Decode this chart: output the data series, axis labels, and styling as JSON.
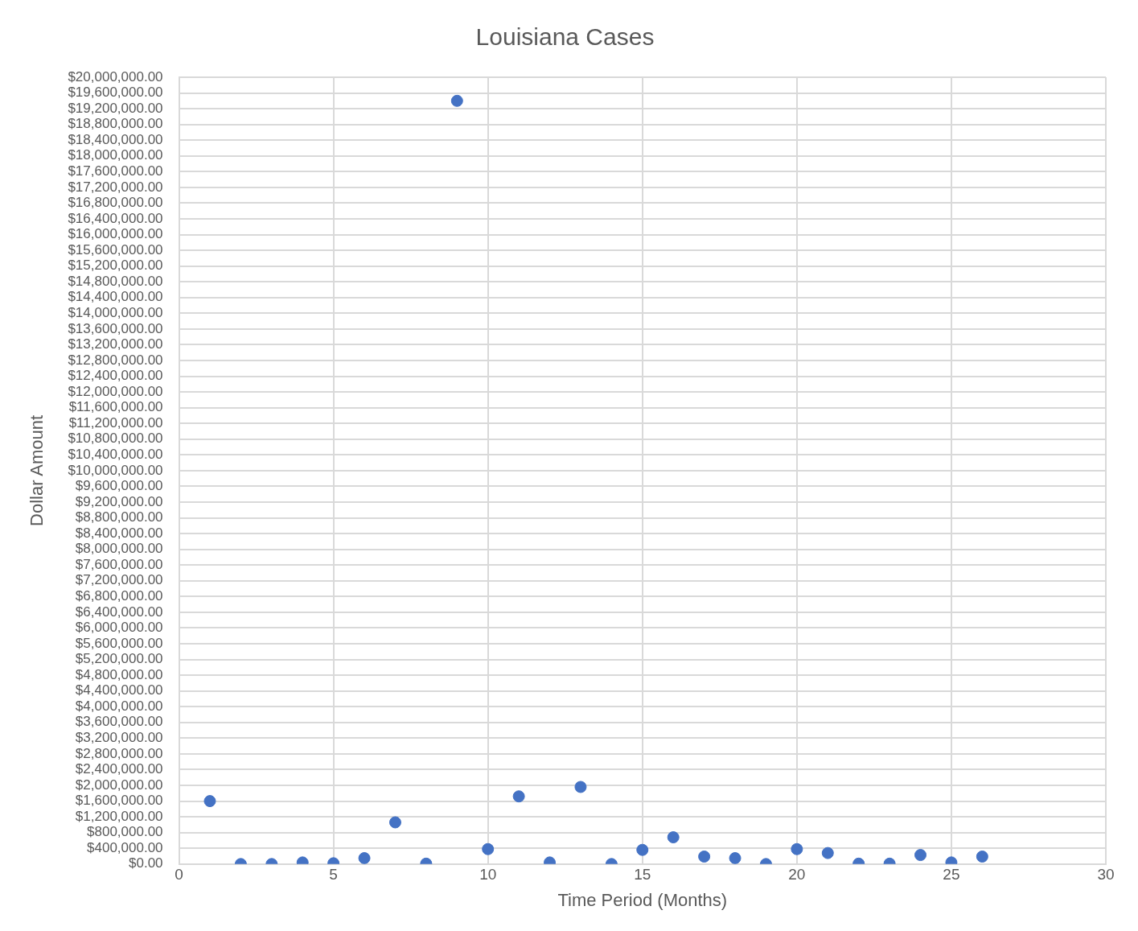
{
  "chart_data": {
    "type": "scatter",
    "title": "Louisiana Cases",
    "xlabel": "Time Period (Months)",
    "ylabel": "Dollar Amount",
    "x": [
      1,
      2,
      3,
      4,
      5,
      6,
      7,
      8,
      9,
      10,
      11,
      12,
      13,
      14,
      15,
      16,
      17,
      18,
      19,
      20,
      21,
      22,
      23,
      24,
      25,
      26
    ],
    "values": [
      1600000,
      0,
      0,
      40000,
      20000,
      150000,
      1060000,
      10000,
      19400000,
      380000,
      1720000,
      40000,
      1960000,
      0,
      360000,
      680000,
      190000,
      150000,
      0,
      380000,
      280000,
      10000,
      10000,
      230000,
      40000,
      190000
    ],
    "color": "#4472c4",
    "marker": "circle",
    "grid": true,
    "legend": false,
    "xlim": [
      0,
      30
    ],
    "xticks": [
      0,
      5,
      10,
      15,
      20,
      25,
      30
    ],
    "ylim": [
      0,
      20000000
    ],
    "yticks": [
      {
        "value": 0,
        "label": "$0.00"
      },
      {
        "value": 400000,
        "label": "$400,000.00"
      },
      {
        "value": 800000,
        "label": "$800,000.00"
      },
      {
        "value": 1200000,
        "label": "$1,200,000.00"
      },
      {
        "value": 1600000,
        "label": "$1,600,000.00"
      },
      {
        "value": 2000000,
        "label": "$2,000,000.00"
      },
      {
        "value": 2400000,
        "label": "$2,400,000.00"
      },
      {
        "value": 2800000,
        "label": "$2,800,000.00"
      },
      {
        "value": 3200000,
        "label": "$3,200,000.00"
      },
      {
        "value": 3600000,
        "label": "$3,600,000.00"
      },
      {
        "value": 4000000,
        "label": "$4,000,000.00"
      },
      {
        "value": 4400000,
        "label": "$4,400,000.00"
      },
      {
        "value": 4800000,
        "label": "$4,800,000.00"
      },
      {
        "value": 5200000,
        "label": "$5,200,000.00"
      },
      {
        "value": 5600000,
        "label": "$5,600,000.00"
      },
      {
        "value": 6000000,
        "label": "$6,000,000.00"
      },
      {
        "value": 6400000,
        "label": "$6,400,000.00"
      },
      {
        "value": 6800000,
        "label": "$6,800,000.00"
      },
      {
        "value": 7200000,
        "label": "$7,200,000.00"
      },
      {
        "value": 7600000,
        "label": "$7,600,000.00"
      },
      {
        "value": 8000000,
        "label": "$8,000,000.00"
      },
      {
        "value": 8400000,
        "label": "$8,400,000.00"
      },
      {
        "value": 8800000,
        "label": "$8,800,000.00"
      },
      {
        "value": 9200000,
        "label": "$9,200,000.00"
      },
      {
        "value": 9600000,
        "label": "$9,600,000.00"
      },
      {
        "value": 10000000,
        "label": "$10,000,000.00"
      },
      {
        "value": 10400000,
        "label": "$10,400,000.00"
      },
      {
        "value": 10800000,
        "label": "$10,800,000.00"
      },
      {
        "value": 11200000,
        "label": "$11,200,000.00"
      },
      {
        "value": 11600000,
        "label": "$11,600,000.00"
      },
      {
        "value": 12000000,
        "label": "$12,000,000.00"
      },
      {
        "value": 12400000,
        "label": "$12,400,000.00"
      },
      {
        "value": 12800000,
        "label": "$12,800,000.00"
      },
      {
        "value": 13200000,
        "label": "$13,200,000.00"
      },
      {
        "value": 13600000,
        "label": "$13,600,000.00"
      },
      {
        "value": 14000000,
        "label": "$14,000,000.00"
      },
      {
        "value": 14400000,
        "label": "$14,400,000.00"
      },
      {
        "value": 14800000,
        "label": "$14,800,000.00"
      },
      {
        "value": 15200000,
        "label": "$15,200,000.00"
      },
      {
        "value": 15600000,
        "label": "$15,600,000.00"
      },
      {
        "value": 16000000,
        "label": "$16,000,000.00"
      },
      {
        "value": 16400000,
        "label": "$16,400,000.00"
      },
      {
        "value": 16800000,
        "label": "$16,800,000.00"
      },
      {
        "value": 17200000,
        "label": "$17,200,000.00"
      },
      {
        "value": 17600000,
        "label": "$17,600,000.00"
      },
      {
        "value": 18000000,
        "label": "$18,000,000.00"
      },
      {
        "value": 18400000,
        "label": "$18,400,000.00"
      },
      {
        "value": 18800000,
        "label": "$18,800,000.00"
      },
      {
        "value": 19200000,
        "label": "$19,200,000.00"
      },
      {
        "value": 19600000,
        "label": "$19,600,000.00"
      },
      {
        "value": 20000000,
        "label": "$20,000,000.00"
      }
    ]
  }
}
